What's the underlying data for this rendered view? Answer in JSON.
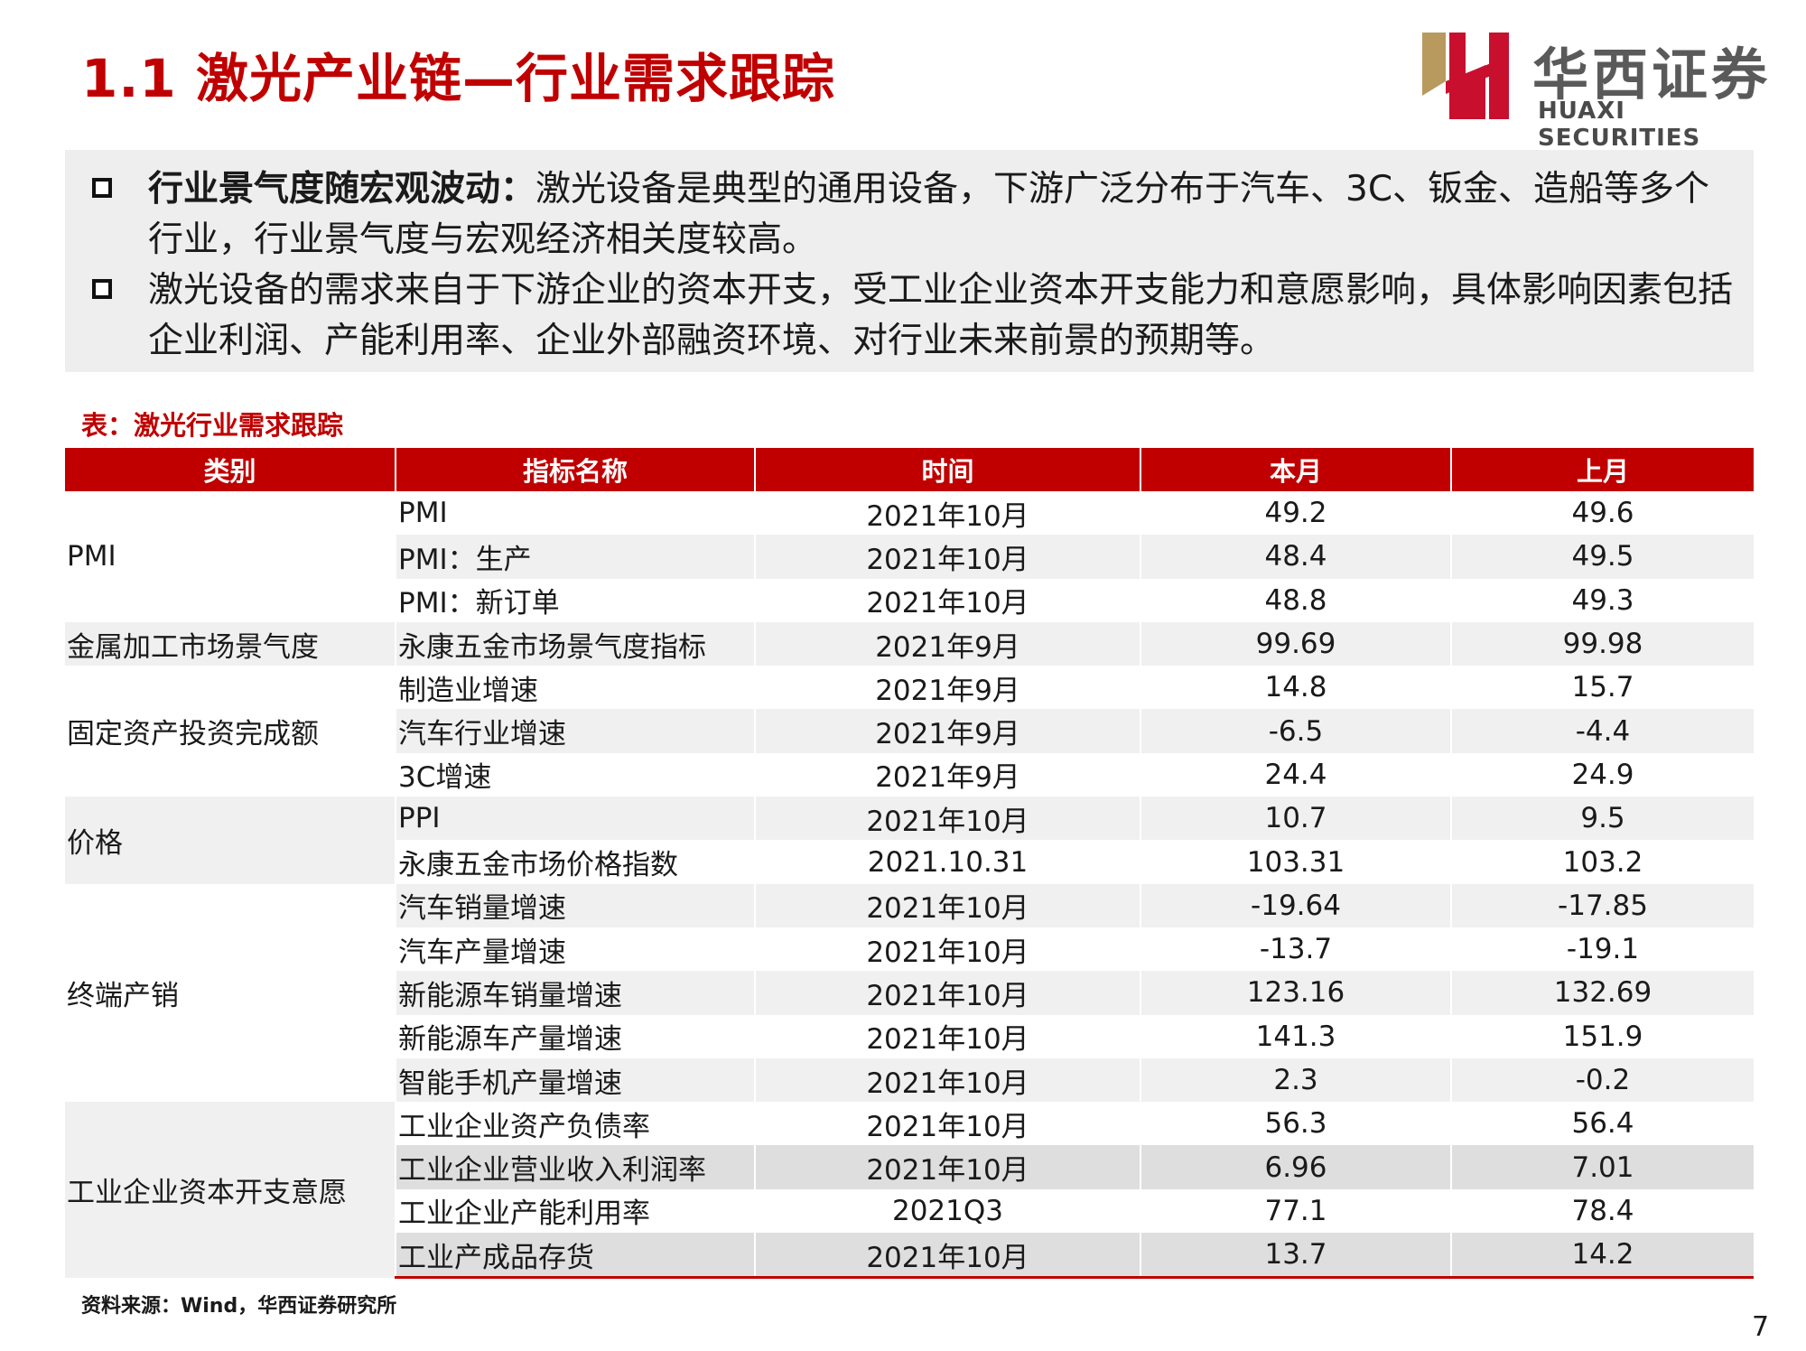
{
  "slide": {
    "title": "1.1 激光产业链—行业需求跟踪",
    "logo": {
      "cn": "华西证券",
      "en": "HUAXI SECURITIES",
      "colors": {
        "red": "#c8102e",
        "gold": "#b89a5e"
      }
    },
    "bullets": [
      {
        "bold": "行业景气度随宏观波动：",
        "text": "激光设备是典型的通用设备，下游广泛分布于汽车、3C、钣金、造船等多个行业，行业景气度与宏观经济相关度较高。"
      },
      {
        "bold": "",
        "text": "激光设备的需求来自于下游企业的资本开支，受工业企业资本开支能力和意愿影响，具体影响因素包括企业利润、产能利用率、企业外部融资环境、对行业未来前景的预期等。"
      }
    ],
    "table_caption": "表：激光行业需求跟踪",
    "source": "资料来源：Wind，华西证券研究所",
    "page_number": "7"
  },
  "table": {
    "headers": [
      "类别",
      "指标名称",
      "时间",
      "本月",
      "上月"
    ],
    "groups": [
      {
        "category": "PMI",
        "rows": [
          [
            "PMI",
            "2021年10月",
            "49.2",
            "49.6"
          ],
          [
            "PMI：生产",
            "2021年10月",
            "48.4",
            "49.5"
          ],
          [
            "PMI：新订单",
            "2021年10月",
            "48.8",
            "49.3"
          ]
        ]
      },
      {
        "category": "金属加工市场景气度",
        "rows": [
          [
            "永康五金市场景气度指标",
            "2021年9月",
            "99.69",
            "99.98"
          ]
        ]
      },
      {
        "category": "固定资产投资完成额",
        "rows": [
          [
            "制造业增速",
            "2021年9月",
            "14.8",
            "15.7"
          ],
          [
            "汽车行业增速",
            "2021年9月",
            "-6.5",
            "-4.4"
          ],
          [
            "3C增速",
            "2021年9月",
            "24.4",
            "24.9"
          ]
        ]
      },
      {
        "category": "价格",
        "rows": [
          [
            "PPI",
            "2021年10月",
            "10.7",
            "9.5"
          ],
          [
            "永康五金市场价格指数",
            "2021.10.31",
            "103.31",
            "103.2"
          ]
        ]
      },
      {
        "category": "终端产销",
        "rows": [
          [
            "汽车销量增速",
            "2021年10月",
            "-19.64",
            "-17.85"
          ],
          [
            "汽车产量增速",
            "2021年10月",
            "-13.7",
            "-19.1"
          ],
          [
            "新能源车销量增速",
            "2021年10月",
            "123.16",
            "132.69"
          ],
          [
            "新能源车产量增速",
            "2021年10月",
            "141.3",
            "151.9"
          ],
          [
            "智能手机产量增速",
            "2021年10月",
            "2.3",
            "-0.2"
          ]
        ]
      },
      {
        "category": "工业企业资本开支意愿",
        "rows": [
          [
            "工业企业资产负债率",
            "2021年10月",
            "56.3",
            "56.4"
          ],
          [
            "工业企业营业收入利润率",
            "2021年10月",
            "6.96",
            "7.01"
          ],
          [
            "工业企业产能利用率",
            "2021Q3",
            "77.1",
            "78.4"
          ],
          [
            "工业产成品存货",
            "2021年10月",
            "13.7",
            "14.2"
          ]
        ]
      }
    ]
  }
}
